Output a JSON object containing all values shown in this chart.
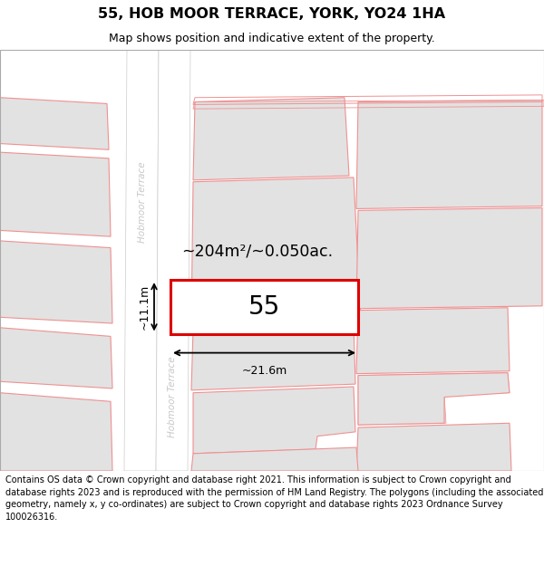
{
  "title": "55, HOB MOOR TERRACE, YORK, YO24 1HA",
  "subtitle": "Map shows position and indicative extent of the property.",
  "footer": "Contains OS data © Crown copyright and database right 2021. This information is subject to Crown copyright and database rights 2023 and is reproduced with the permission of HM Land Registry. The polygons (including the associated geometry, namely x, y co-ordinates) are subject to Crown copyright and database rights 2023 Ordnance Survey 100026316.",
  "area_label": "~204m²/~0.050ac.",
  "width_label": "~21.6m",
  "height_label": "~11.1m",
  "plot_number": "55",
  "bg_color": "#ffffff",
  "map_bg": "#efefef",
  "road_color": "#ffffff",
  "plot_fill": "#ffffff",
  "plot_edge": "#dd0000",
  "neighbor_fill": "#e2e2e2",
  "neighbor_edge": "#f09090",
  "road_label_color": "#c8c8c8",
  "title_fontsize": 11.5,
  "subtitle_fontsize": 9,
  "footer_fontsize": 7.0
}
